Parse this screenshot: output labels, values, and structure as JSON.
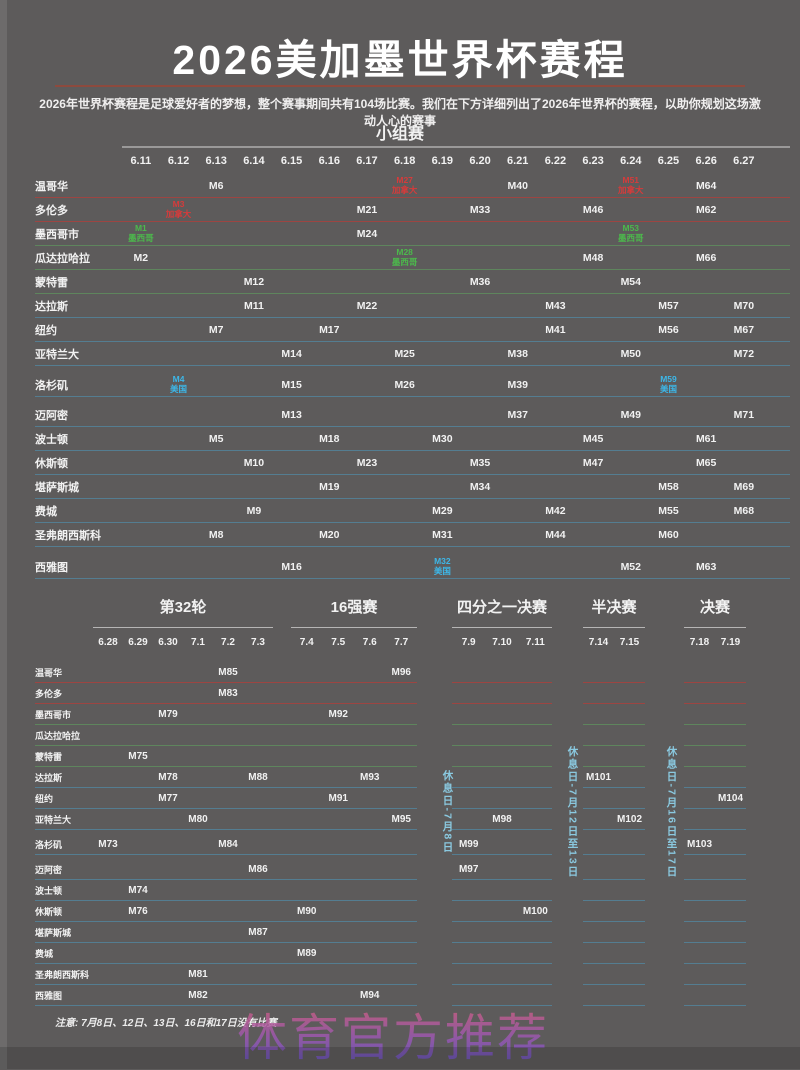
{
  "title": "2026美加墨世界杯赛程",
  "subtitle": "2026年世界杯赛程是足球爱好者的梦想，整个赛事期间共有104场比赛。我们在下方详细列出了2026年世界杯的赛程，以助你规划这场激动人心的赛事",
  "footer_note": "注意: 7月8日、12日、13日、16日和17日没有比赛",
  "watermark": "体育官方推荐",
  "colors": {
    "background": "#5d5b5b",
    "title_underline": "#8d4a3e",
    "canada_red": "#d63b3b",
    "mexico_green": "#4cb94c",
    "usa_blue": "#3db7e8",
    "rest_day_blue": "#8ed3ec",
    "text": "#f2f2f2"
  },
  "chart_data": {
    "type": "table",
    "group_stage": {
      "heading": "小组赛",
      "dates": [
        "6.11",
        "6.12",
        "6.13",
        "6.14",
        "6.15",
        "6.16",
        "6.17",
        "6.18",
        "6.19",
        "6.20",
        "6.21",
        "6.22",
        "6.23",
        "6.24",
        "6.25",
        "6.26",
        "6.27"
      ],
      "rows": [
        {
          "city": "温哥华",
          "country": "canada",
          "matches": {
            "6.13": {
              "m": "M6"
            },
            "6.18": {
              "m": "M27",
              "tag": "加拿大",
              "c": "canada"
            },
            "6.21": {
              "m": "M40"
            },
            "6.24": {
              "m": "M51",
              "tag": "加拿大",
              "c": "canada"
            },
            "6.26": {
              "m": "M64"
            }
          }
        },
        {
          "city": "多伦多",
          "country": "canada",
          "matches": {
            "6.12": {
              "m": "M3",
              "tag": "加拿大",
              "c": "canada"
            },
            "6.17": {
              "m": "M21"
            },
            "6.20": {
              "m": "M33"
            },
            "6.23": {
              "m": "M46"
            },
            "6.26": {
              "m": "M62"
            }
          }
        },
        {
          "city": "墨西哥市",
          "country": "mexico",
          "matches": {
            "6.11": {
              "m": "M1",
              "tag": "墨西哥",
              "c": "mexico"
            },
            "6.17": {
              "m": "M24"
            },
            "6.24": {
              "m": "M53",
              "tag": "墨西哥",
              "c": "mexico"
            }
          }
        },
        {
          "city": "瓜达拉哈拉",
          "country": "mexico",
          "matches": {
            "6.11": {
              "m": "M2"
            },
            "6.18": {
              "m": "M28",
              "tag": "墨西哥",
              "c": "mexico"
            },
            "6.23": {
              "m": "M48"
            },
            "6.26": {
              "m": "M66"
            }
          }
        },
        {
          "city": "蒙特雷",
          "country": "mexico",
          "matches": {
            "6.14": {
              "m": "M12"
            },
            "6.20": {
              "m": "M36"
            },
            "6.24": {
              "m": "M54"
            }
          }
        },
        {
          "city": "达拉斯",
          "country": "usa",
          "matches": {
            "6.14": {
              "m": "M11"
            },
            "6.17": {
              "m": "M22"
            },
            "6.22": {
              "m": "M43"
            },
            "6.25": {
              "m": "M57"
            },
            "6.27": {
              "m": "M70"
            }
          }
        },
        {
          "city": "纽约",
          "country": "usa",
          "matches": {
            "6.13": {
              "m": "M7"
            },
            "6.16": {
              "m": "M17"
            },
            "6.22": {
              "m": "M41"
            },
            "6.25": {
              "m": "M56"
            },
            "6.27": {
              "m": "M67"
            }
          }
        },
        {
          "city": "亚特兰大",
          "country": "usa",
          "matches": {
            "6.15": {
              "m": "M14"
            },
            "6.18": {
              "m": "M25"
            },
            "6.21": {
              "m": "M38"
            },
            "6.24": {
              "m": "M50"
            },
            "6.27": {
              "m": "M72"
            }
          }
        },
        {
          "city": "洛杉矶",
          "country": "usa",
          "matches": {
            "6.12": {
              "m": "M4",
              "tag": "美国",
              "c": "usa"
            },
            "6.15": {
              "m": "M15"
            },
            "6.18": {
              "m": "M26"
            },
            "6.21": {
              "m": "M39"
            },
            "6.25": {
              "m": "M59",
              "tag": "美国",
              "c": "usa"
            }
          }
        },
        {
          "city": "迈阿密",
          "country": "usa",
          "matches": {
            "6.15": {
              "m": "M13"
            },
            "6.21": {
              "m": "M37"
            },
            "6.24": {
              "m": "M49"
            },
            "6.27": {
              "m": "M71"
            }
          }
        },
        {
          "city": "波士顿",
          "country": "usa",
          "matches": {
            "6.13": {
              "m": "M5"
            },
            "6.16": {
              "m": "M18"
            },
            "6.19": {
              "m": "M30"
            },
            "6.23": {
              "m": "M45"
            },
            "6.26": {
              "m": "M61"
            }
          }
        },
        {
          "city": "休斯顿",
          "country": "usa",
          "matches": {
            "6.14": {
              "m": "M10"
            },
            "6.17": {
              "m": "M23"
            },
            "6.20": {
              "m": "M35"
            },
            "6.23": {
              "m": "M47"
            },
            "6.26": {
              "m": "M65"
            }
          }
        },
        {
          "city": "堪萨斯城",
          "country": "usa",
          "matches": {
            "6.16": {
              "m": "M19"
            },
            "6.20": {
              "m": "M34"
            },
            "6.25": {
              "m": "M58"
            },
            "6.27": {
              "m": "M69"
            }
          }
        },
        {
          "city": "费城",
          "country": "usa",
          "matches": {
            "6.14": {
              "m": "M9"
            },
            "6.19": {
              "m": "M29"
            },
            "6.22": {
              "m": "M42"
            },
            "6.25": {
              "m": "M55"
            },
            "6.27": {
              "m": "M68"
            }
          }
        },
        {
          "city": "圣弗朗西斯科",
          "country": "usa",
          "matches": {
            "6.13": {
              "m": "M8"
            },
            "6.16": {
              "m": "M20"
            },
            "6.19": {
              "m": "M31"
            },
            "6.22": {
              "m": "M44"
            },
            "6.25": {
              "m": "M60"
            }
          }
        },
        {
          "city": "西雅图",
          "country": "usa",
          "matches": {
            "6.15": {
              "m": "M16"
            },
            "6.19": {
              "m": "M32",
              "tag": "美国",
              "c": "usa"
            },
            "6.24": {
              "m": "M52"
            },
            "6.26": {
              "m": "M63"
            }
          }
        }
      ]
    },
    "knockout": {
      "sections": [
        {
          "id": "r32",
          "title": "第32轮",
          "dates": [
            "6.28",
            "6.29",
            "6.30",
            "7.1",
            "7.2",
            "7.3"
          ]
        },
        {
          "id": "r16",
          "title": "16强赛",
          "dates": [
            "7.4",
            "7.5",
            "7.6",
            "7.7"
          ]
        },
        {
          "id": "qf",
          "title": "四分之一决赛",
          "dates": [
            "7.9",
            "7.10",
            "7.11"
          ]
        },
        {
          "id": "sf",
          "title": "半决赛",
          "dates": [
            "7.14",
            "7.15"
          ]
        },
        {
          "id": "final",
          "title": "决赛",
          "dates": [
            "7.18",
            "7.19"
          ]
        }
      ],
      "rest_days": [
        "休息日-7月8日",
        "休息日-7月12日至13日",
        "休息日-7月16日至17日"
      ],
      "rows": [
        {
          "city": "温哥华",
          "country": "canada",
          "matches": {
            "7.2": "M85",
            "7.7": "M96"
          }
        },
        {
          "city": "多伦多",
          "country": "canada",
          "matches": {
            "7.2": "M83"
          }
        },
        {
          "city": "墨西哥市",
          "country": "mexico",
          "matches": {
            "6.30": "M79",
            "7.5": "M92"
          }
        },
        {
          "city": "瓜达拉哈拉",
          "country": "mexico",
          "matches": {}
        },
        {
          "city": "蒙特雷",
          "country": "mexico",
          "matches": {
            "6.29": "M75"
          }
        },
        {
          "city": "达拉斯",
          "country": "usa",
          "matches": {
            "6.30": "M78",
            "7.3": "M88",
            "7.6": "M93",
            "7.14": "M101"
          }
        },
        {
          "city": "纽约",
          "country": "usa",
          "matches": {
            "6.30": "M77",
            "7.5": "M91",
            "7.19": "M104"
          }
        },
        {
          "city": "亚特兰大",
          "country": "usa",
          "matches": {
            "7.1": "M80",
            "7.7": "M95",
            "7.10": "M98",
            "7.15": "M102"
          }
        },
        {
          "city": "洛杉矶",
          "country": "usa",
          "matches": {
            "6.28": "M73",
            "7.2": "M84",
            "7.9": "M99",
            "7.18": "M103"
          }
        },
        {
          "city": "迈阿密",
          "country": "usa",
          "matches": {
            "7.3": "M86",
            "7.9": "M97"
          }
        },
        {
          "city": "波士顿",
          "country": "usa",
          "matches": {
            "6.29": "M74"
          }
        },
        {
          "city": "休斯顿",
          "country": "usa",
          "matches": {
            "6.29": "M76",
            "7.4": "M90",
            "7.11": "M100"
          }
        },
        {
          "city": "堪萨斯城",
          "country": "usa",
          "matches": {
            "7.3": "M87"
          }
        },
        {
          "city": "费城",
          "country": "usa",
          "matches": {
            "7.4": "M89"
          }
        },
        {
          "city": "圣弗朗西斯科",
          "country": "usa",
          "matches": {
            "7.1": "M81"
          }
        },
        {
          "city": "西雅图",
          "country": "usa",
          "matches": {
            "7.1": "M82",
            "7.6": "M94"
          }
        }
      ]
    }
  }
}
